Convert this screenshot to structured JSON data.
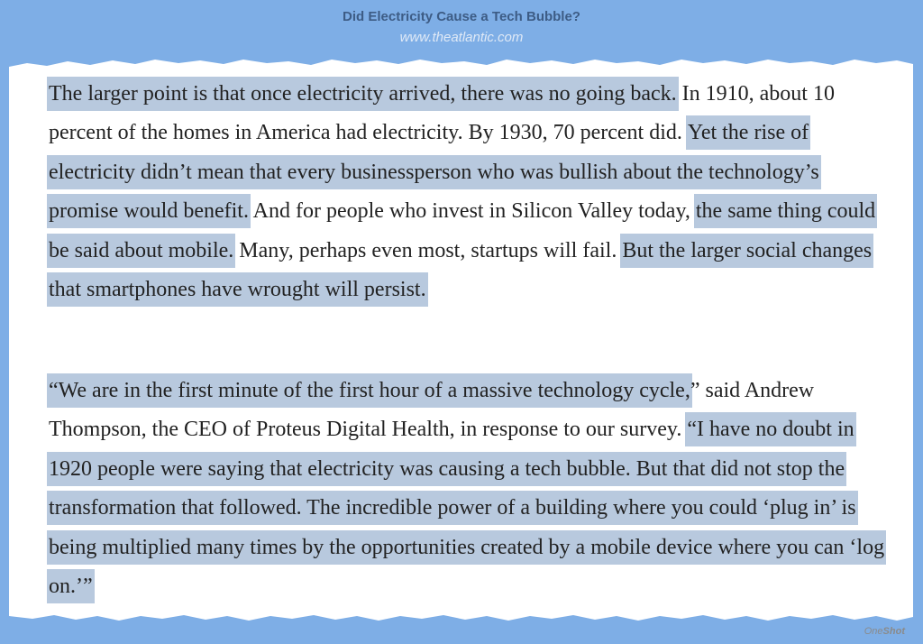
{
  "header": {
    "title": "Did Electricity Cause a Tech Bubble?",
    "url": "www.theatlantic.com"
  },
  "paragraph1": {
    "s1": "The larger point is that once electricity arrived, there was no going back.",
    "s2": " In 1910, about 10 percent of the homes in America had electricity. By 1930, 70 percent did. ",
    "s3": "Yet the rise of electricity didn’t mean that every businessperson who was bullish about the technology’s promise would benefit.",
    "s4": " And for people who invest in Silicon Valley today, ",
    "s5": "the same thing could be said about mobile.",
    "s6": " Many, perhaps even most, startups will fail. ",
    "s7": "But the larger social changes that smartphones have wrought will persist."
  },
  "paragraph2": {
    "s1": "“We are in the first minute of the first hour of a massive technology cycle,",
    "s2": "” said Andrew Thompson, the CEO of Proteus Digital Health, in response to our survey. ",
    "s3": "“I have no doubt in 1920 people were saying that electricity was causing a tech bubble. But that did not stop the transformation that followed. The incredible power of a building where you could ‘plug in’ is being multiplied many times by the opportunities created by a mobile device where you can ‘log on.’”"
  },
  "brand": {
    "part1": "One",
    "part2": "Shot"
  }
}
